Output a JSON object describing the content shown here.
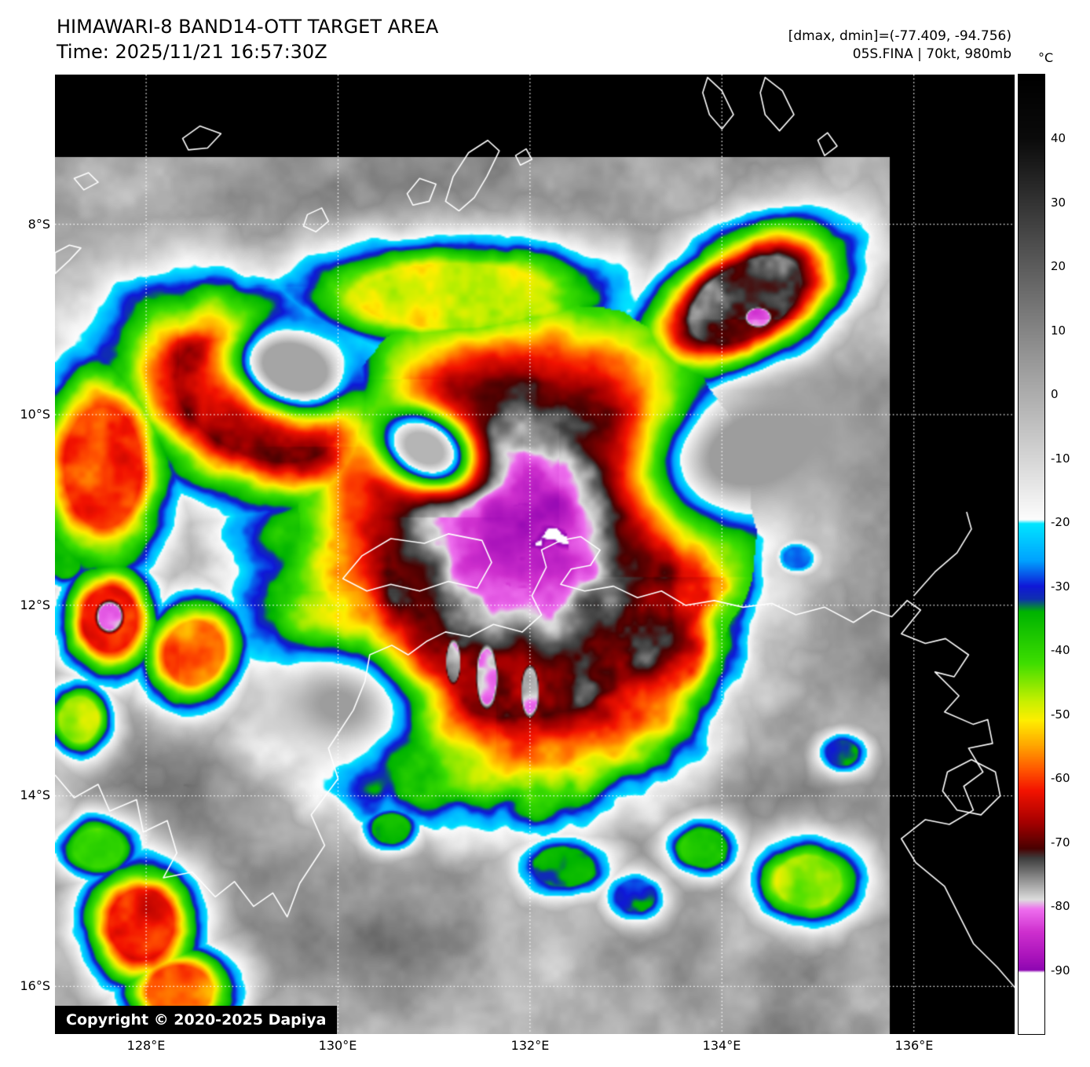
{
  "header": {
    "title": "HIMAWARI-8 BAND14-OTT TARGET AREA",
    "time_line": "Time: 2025/11/21 16:57:30Z",
    "stats_line": "[dmax, dmin]=(-77.409, -94.756)",
    "storm_line": "05S.FINA | 70kt, 980mb"
  },
  "axes": {
    "lat_ticks": [
      "8°S",
      "10°S",
      "12°S",
      "14°S",
      "16°S"
    ],
    "lon_ticks": [
      "128°E",
      "130°E",
      "132°E",
      "134°E",
      "136°E"
    ]
  },
  "colorbar": {
    "unit": "°C",
    "ticks": [
      "40",
      "30",
      "20",
      "10",
      "0",
      "-10",
      "-20",
      "-30",
      "-40",
      "-50",
      "-60",
      "-70",
      "-80",
      "-90"
    ],
    "t_range": [
      50,
      -100
    ],
    "stops": [
      {
        "t": 50,
        "c": "#000000"
      },
      {
        "t": 40,
        "c": "#0b0b0b"
      },
      {
        "t": -19.6,
        "c": "#fdfdfd"
      },
      {
        "t": -20.2,
        "c": "#00e6ff"
      },
      {
        "t": -26,
        "c": "#00a2ff"
      },
      {
        "t": -30,
        "c": "#1018d8"
      },
      {
        "t": -32,
        "c": "#0f30b0"
      },
      {
        "t": -34,
        "c": "#00b400"
      },
      {
        "t": -42,
        "c": "#3ede00"
      },
      {
        "t": -48,
        "c": "#c8f000"
      },
      {
        "t": -51,
        "c": "#ffee00"
      },
      {
        "t": -55,
        "c": "#ffa400"
      },
      {
        "t": -59,
        "c": "#ff5000"
      },
      {
        "t": -62,
        "c": "#f31300"
      },
      {
        "t": -67,
        "c": "#a40000"
      },
      {
        "t": -71,
        "c": "#4a0202"
      },
      {
        "t": -72.5,
        "c": "#3e3e3e"
      },
      {
        "t": -79,
        "c": "#dedede"
      },
      {
        "t": -80.5,
        "c": "#ef6fef"
      },
      {
        "t": -84,
        "c": "#cf30cf"
      },
      {
        "t": -88,
        "c": "#a913bb"
      },
      {
        "t": -90,
        "c": "#8e07b2"
      },
      {
        "t": -90.4,
        "c": "#ffffff"
      },
      {
        "t": -100,
        "c": "#ffffff"
      }
    ]
  },
  "map": {
    "lon_range": [
      127.05,
      137.05
    ],
    "lat_range": [
      6.43,
      16.5
    ],
    "lon_gridlines": [
      128,
      130,
      132,
      134,
      136
    ],
    "lat_gridlines": [
      8,
      10,
      12,
      14,
      16
    ],
    "grid_color": "#ffffff",
    "coast_color": "#ffffff",
    "background_color": "#000000"
  },
  "footer": {
    "copyright": "Copyright © 2020-2025 Dapiya"
  }
}
